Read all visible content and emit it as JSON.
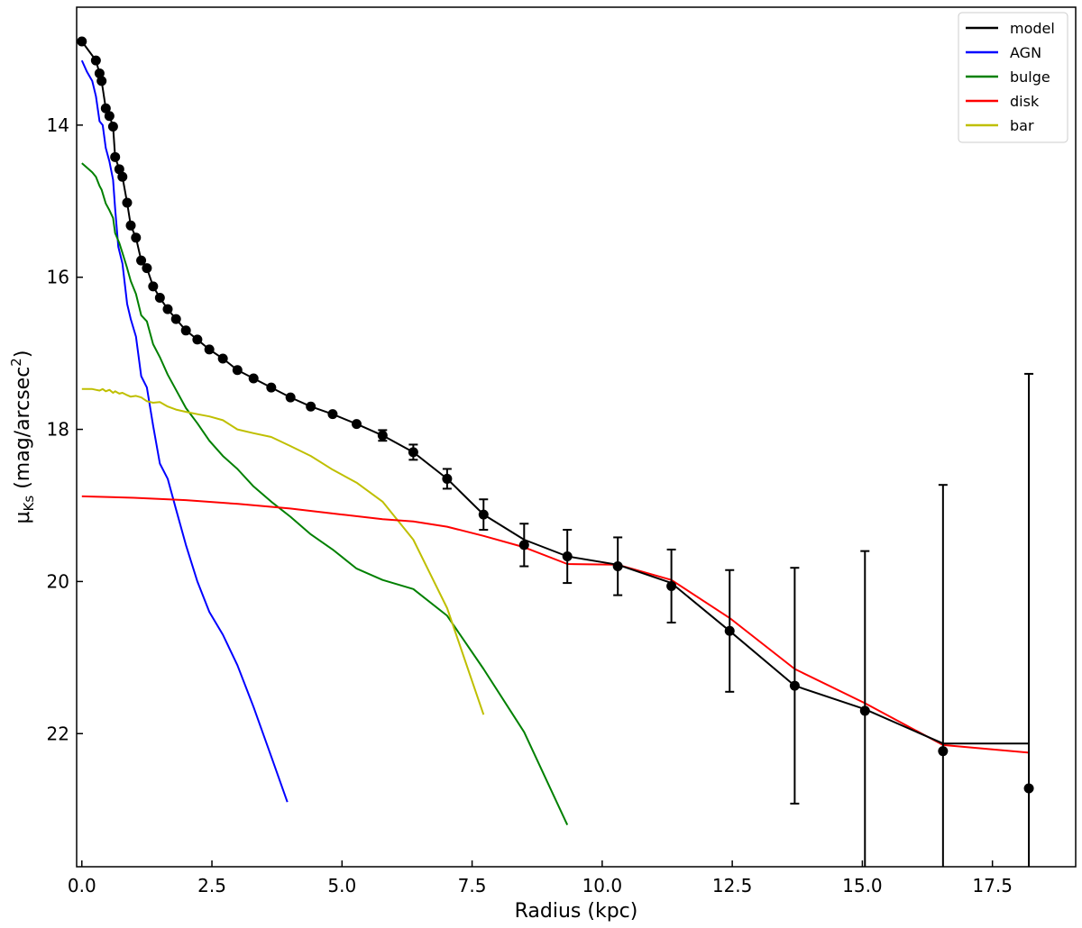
{
  "chart_data": {
    "type": "line",
    "title": "",
    "xlabel": "Radius (kpc)",
    "ylabel_main": "μ",
    "ylabel_sub": "Ks",
    "ylabel_unit": " (mag/arcsec",
    "ylabel_sup": "2",
    "ylabel_close": ")",
    "xlim": [
      -0.1,
      19.1
    ],
    "ylim": [
      23.75,
      12.45
    ],
    "y_inverted": true,
    "grid": false,
    "legend_position": "top-right",
    "x_ticks": [
      0.0,
      2.5,
      5.0,
      7.5,
      10.0,
      12.5,
      15.0,
      17.5
    ],
    "x_tick_labels": [
      "0.0",
      "2.5",
      "5.0",
      "7.5",
      "10.0",
      "12.5",
      "15.0",
      "17.5"
    ],
    "y_ticks": [
      14,
      16,
      18,
      20,
      22
    ],
    "y_tick_labels": [
      "14",
      "16",
      "18",
      "20",
      "22"
    ],
    "legend": [
      {
        "label": "model",
        "color": "#000000"
      },
      {
        "label": "AGN",
        "color": "#0000ff"
      },
      {
        "label": "bulge",
        "color": "#008000"
      },
      {
        "label": "disk",
        "color": "#ff0000"
      },
      {
        "label": "bar",
        "color": "#bfbf00"
      }
    ],
    "observed_points": {
      "color": "#000000",
      "x": [
        0.0,
        0.27,
        0.34,
        0.38,
        0.46,
        0.53,
        0.6,
        0.64,
        0.72,
        0.78,
        0.87,
        0.94,
        1.04,
        1.14,
        1.25,
        1.37,
        1.5,
        1.65,
        1.81,
        2.0,
        2.22,
        2.45,
        2.71,
        2.99,
        3.3,
        3.64,
        4.01,
        4.4,
        4.82,
        5.28,
        5.78,
        6.37,
        7.02,
        7.72,
        8.5,
        9.33,
        10.3,
        11.33,
        12.45,
        13.7,
        15.05,
        16.55,
        18.2
      ],
      "y": [
        12.9,
        13.15,
        13.32,
        13.42,
        13.78,
        13.88,
        14.02,
        14.42,
        14.58,
        14.68,
        15.02,
        15.32,
        15.48,
        15.78,
        15.88,
        16.12,
        16.27,
        16.42,
        16.55,
        16.7,
        16.82,
        16.95,
        17.07,
        17.22,
        17.33,
        17.45,
        17.58,
        17.7,
        17.8,
        17.93,
        18.08,
        18.3,
        18.65,
        19.12,
        19.52,
        19.67,
        19.8,
        20.06,
        20.65,
        21.37,
        21.7,
        22.23,
        22.72
      ],
      "yerr": [
        0,
        0,
        0,
        0,
        0,
        0,
        0,
        0,
        0,
        0,
        0,
        0,
        0,
        0,
        0,
        0,
        0,
        0,
        0,
        0,
        0,
        0,
        0,
        0,
        0,
        0,
        0,
        0,
        0,
        0,
        0.07,
        0.1,
        0.13,
        0.2,
        0.28,
        0.35,
        0.38,
        0.48,
        0.8,
        1.55,
        2.1,
        3.5,
        5.45
      ]
    },
    "series": [
      {
        "name": "model",
        "color": "#000000",
        "x": [
          0.0,
          0.27,
          0.34,
          0.38,
          0.46,
          0.53,
          0.6,
          0.64,
          0.72,
          0.78,
          0.87,
          0.94,
          1.04,
          1.14,
          1.25,
          1.37,
          1.5,
          1.65,
          1.81,
          2.0,
          2.22,
          2.45,
          2.71,
          2.99,
          3.3,
          3.64,
          4.01,
          4.4,
          4.82,
          5.28,
          5.78,
          6.37,
          7.02,
          7.72,
          8.5,
          9.33,
          10.3,
          11.33,
          12.45,
          13.7,
          15.05,
          16.55,
          18.2
        ],
        "y": [
          12.9,
          13.15,
          13.32,
          13.42,
          13.78,
          13.88,
          14.02,
          14.42,
          14.58,
          14.68,
          15.02,
          15.32,
          15.48,
          15.78,
          15.88,
          16.12,
          16.27,
          16.42,
          16.55,
          16.7,
          16.82,
          16.95,
          17.07,
          17.22,
          17.33,
          17.45,
          17.58,
          17.7,
          17.8,
          17.93,
          18.08,
          18.3,
          18.65,
          19.12,
          19.45,
          19.67,
          19.78,
          20.02,
          20.65,
          21.37,
          21.68,
          22.13,
          22.13
        ]
      },
      {
        "name": "AGN",
        "color": "#0000ff",
        "x": [
          0.0,
          0.1,
          0.2,
          0.27,
          0.34,
          0.4,
          0.46,
          0.53,
          0.6,
          0.64,
          0.7,
          0.78,
          0.87,
          0.94,
          1.04,
          1.14,
          1.25,
          1.37,
          1.5,
          1.65,
          1.81,
          2.0,
          2.22,
          2.45,
          2.71,
          2.99,
          3.3,
          3.64,
          3.95
        ],
        "y": [
          13.15,
          13.3,
          13.42,
          13.62,
          13.95,
          14.0,
          14.3,
          14.48,
          14.72,
          15.1,
          15.6,
          15.82,
          16.35,
          16.55,
          16.78,
          17.3,
          17.45,
          17.95,
          18.45,
          18.65,
          19.05,
          19.52,
          20.0,
          20.4,
          20.7,
          21.1,
          21.65,
          22.3,
          22.9
        ]
      },
      {
        "name": "bulge",
        "color": "#008000",
        "x": [
          0.0,
          0.1,
          0.2,
          0.27,
          0.34,
          0.38,
          0.46,
          0.53,
          0.6,
          0.64,
          0.72,
          0.78,
          0.87,
          0.94,
          1.04,
          1.14,
          1.25,
          1.37,
          1.5,
          1.65,
          1.81,
          2.0,
          2.22,
          2.45,
          2.71,
          2.99,
          3.3,
          3.64,
          4.01,
          4.4,
          4.82,
          5.28,
          5.78,
          6.37,
          7.02,
          7.72,
          8.5,
          9.33
        ],
        "y": [
          14.5,
          14.56,
          14.62,
          14.68,
          14.8,
          14.85,
          15.03,
          15.12,
          15.22,
          15.42,
          15.55,
          15.68,
          15.88,
          16.05,
          16.22,
          16.5,
          16.58,
          16.88,
          17.05,
          17.28,
          17.48,
          17.72,
          17.92,
          18.15,
          18.35,
          18.52,
          18.75,
          18.95,
          19.15,
          19.38,
          19.58,
          19.83,
          19.98,
          20.1,
          20.45,
          21.15,
          21.98,
          23.2
        ]
      },
      {
        "name": "disk",
        "color": "#ff0000",
        "x": [
          0.0,
          1.0,
          2.0,
          3.0,
          4.0,
          5.0,
          5.78,
          6.37,
          7.02,
          7.72,
          8.5,
          9.33,
          10.3,
          11.33,
          12.45,
          13.7,
          15.05,
          16.55,
          18.2
        ],
        "y": [
          18.88,
          18.9,
          18.93,
          18.98,
          19.04,
          19.12,
          19.18,
          19.21,
          19.28,
          19.4,
          19.55,
          19.77,
          19.78,
          19.98,
          20.48,
          21.15,
          21.6,
          22.15,
          22.25
        ]
      },
      {
        "name": "bar",
        "color": "#bfbf00",
        "x": [
          0.0,
          0.1,
          0.2,
          0.27,
          0.34,
          0.4,
          0.46,
          0.53,
          0.6,
          0.64,
          0.72,
          0.78,
          0.87,
          0.94,
          1.04,
          1.14,
          1.25,
          1.37,
          1.5,
          1.65,
          1.81,
          2.0,
          2.22,
          2.45,
          2.71,
          2.99,
          3.3,
          3.64,
          4.01,
          4.4,
          4.82,
          5.28,
          5.78,
          6.37,
          7.02,
          7.72
        ],
        "y": [
          17.47,
          17.47,
          17.47,
          17.48,
          17.49,
          17.47,
          17.5,
          17.48,
          17.52,
          17.5,
          17.53,
          17.52,
          17.55,
          17.57,
          17.56,
          17.58,
          17.63,
          17.65,
          17.64,
          17.7,
          17.74,
          17.77,
          17.8,
          17.83,
          17.88,
          18.0,
          18.05,
          18.1,
          18.22,
          18.35,
          18.53,
          18.7,
          18.95,
          19.45,
          20.35,
          21.75
        ]
      }
    ]
  }
}
